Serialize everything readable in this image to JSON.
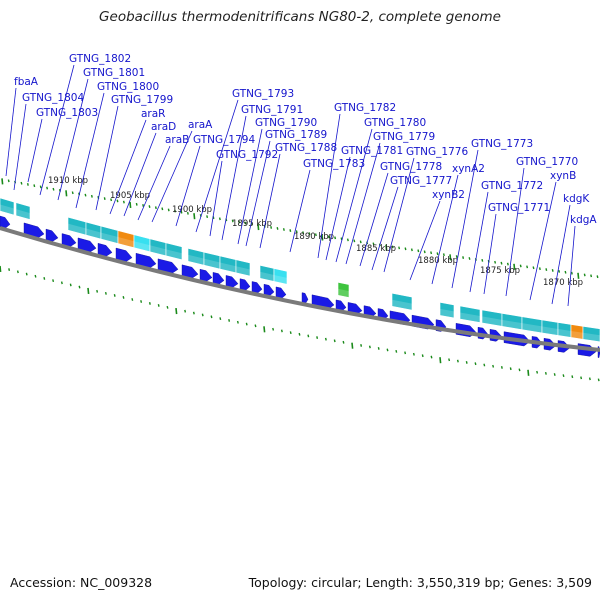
{
  "title": "Geobacillus thermodenitrificans NG80-2, complete genome",
  "footer": {
    "accession": "Accession: NC_009328",
    "topology": "Topology: circular; Length: 3,550,319 bp; Genes: 3,509"
  },
  "colors": {
    "forward_cds": "#1a1ae6",
    "label": "#1515cc",
    "tick": "#1a8a1a",
    "backbone": "#888888",
    "rna_teal": "#22b8c4",
    "rna_cyan": "#38e0f0",
    "orange": "#f08a10",
    "green": "#3ec43e"
  },
  "scale_ticks": [
    "1910 kbp",
    "1905 kbp",
    "1900 kbp",
    "1895 kbp",
    "1890 kbp",
    "1885 kbp",
    "1880 kbp",
    "1875 kbp",
    "1870 kbp"
  ],
  "gene_labels": [
    "fbaA",
    "GTNG_1804",
    "GTNG_1803",
    "GTNG_1802",
    "GTNG_1801",
    "GTNG_1800",
    "GTNG_1799",
    "araR",
    "araD",
    "araB",
    "araA",
    "GTNG_1794",
    "GTNG_1793",
    "GTNG_1792",
    "GTNG_1791",
    "GTNG_1790",
    "GTNG_1789",
    "GTNG_1788",
    "GTNG_1783",
    "GTNG_1782",
    "GTNG_1781",
    "GTNG_1780",
    "GTNG_1779",
    "GTNG_1778",
    "GTNG_1777",
    "GTNG_1776",
    "xynB2",
    "xynA2",
    "GTNG_1773",
    "GTNG_1772",
    "GTNG_1771",
    "GTNG_1770",
    "xynB",
    "kdgK",
    "kdgA"
  ]
}
